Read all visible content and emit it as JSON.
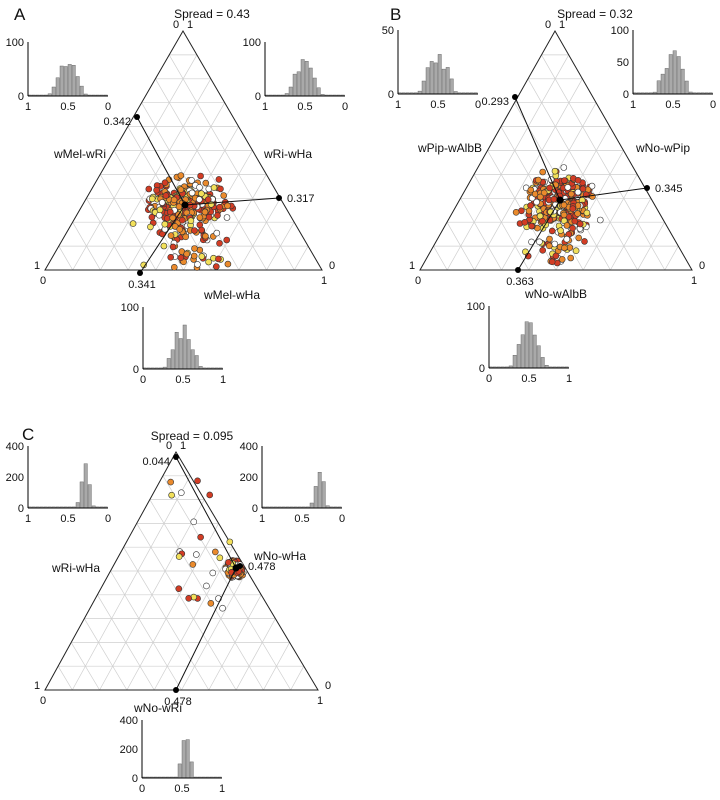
{
  "colors": {
    "point_red": "#d23c24",
    "point_orange": "#ea8a2c",
    "point_yellow": "#f2e05a",
    "point_white": "#ffffff",
    "hist_bar": "#a9a9a9",
    "axis": "#222222"
  },
  "chart_data": [
    {
      "type": "scatter",
      "subtype": "ternary",
      "panel": "A",
      "title": "Spread = 0.43",
      "vertex_labels": {
        "top": [
          "0",
          "1"
        ],
        "left": [
          "1",
          "0"
        ],
        "right": [
          "0",
          "1"
        ]
      },
      "edge_labels": {
        "left": "wMel-wRi",
        "right": "wRi-wHa",
        "bottom": "wMel-wHa"
      },
      "markers": {
        "left": "0.342",
        "right": "0.317",
        "bottom": "0.341"
      },
      "histograms": {
        "left": {
          "yticks": [
            "100",
            "0"
          ],
          "xticks": [
            "1",
            "0.5",
            "0"
          ]
        },
        "right": {
          "yticks": [
            "100",
            "0"
          ],
          "xticks": [
            "1",
            "0.5",
            "0"
          ]
        },
        "bottom": {
          "yticks": [
            "100",
            "0"
          ],
          "xticks": [
            "0",
            "0.5",
            "1"
          ]
        }
      }
    },
    {
      "type": "scatter",
      "subtype": "ternary",
      "panel": "B",
      "title": "Spread = 0.32",
      "vertex_labels": {
        "top": [
          "0",
          "1"
        ],
        "left": [
          "1",
          "0"
        ],
        "right": [
          "0",
          "1"
        ]
      },
      "edge_labels": {
        "left": "wPip-wAlbB",
        "right": "wNo-wPip",
        "bottom": "wNo-wAlbB"
      },
      "markers": {
        "left": "0.293",
        "right": "0.345",
        "bottom": "0.363"
      },
      "histograms": {
        "left": {
          "yticks": [
            "50",
            "0"
          ],
          "xticks": [
            "1",
            "0.5",
            "0"
          ]
        },
        "right": {
          "yticks": [
            "100",
            "50",
            "0"
          ],
          "xticks": [
            "1",
            "0.5",
            "0"
          ]
        },
        "bottom": {
          "yticks": [
            "100",
            "0"
          ],
          "xticks": [
            "0",
            "0.5",
            "1"
          ]
        }
      }
    },
    {
      "type": "scatter",
      "subtype": "ternary",
      "panel": "C",
      "title": "Spread = 0.095",
      "vertex_labels": {
        "top": [
          "0",
          "1"
        ],
        "left": [
          "1",
          "0"
        ],
        "right": [
          "0",
          "1"
        ]
      },
      "edge_labels": {
        "left": "wRi-wHa",
        "right": "wNo-wHa",
        "bottom": "wNo-wRi"
      },
      "markers": {
        "left": "0.044",
        "right": "0.478",
        "bottom": "0.478"
      },
      "histograms": {
        "left": {
          "yticks": [
            "400",
            "200",
            "0"
          ],
          "xticks": [
            "1",
            "0.5",
            "0"
          ]
        },
        "right": {
          "yticks": [
            "400",
            "200",
            "0"
          ],
          "xticks": [
            "1",
            "0.5",
            "0"
          ]
        },
        "bottom": {
          "yticks": [
            "400",
            "200",
            "0"
          ],
          "xticks": [
            "0",
            "0.5",
            "1"
          ]
        }
      }
    }
  ]
}
